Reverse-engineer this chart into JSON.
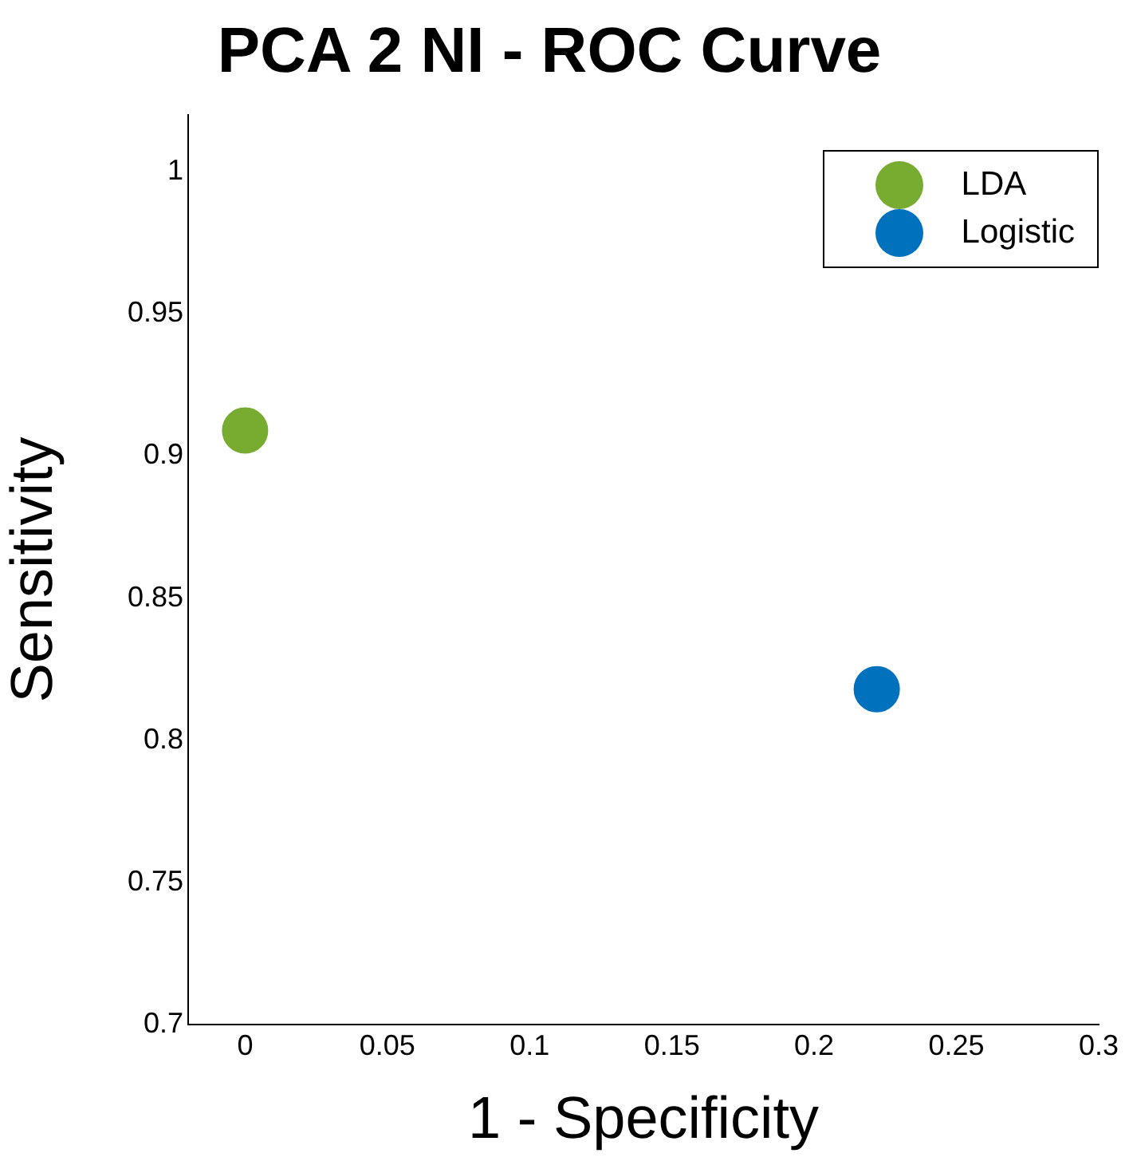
{
  "chart_data": {
    "type": "scatter",
    "title": "PCA 2 NI - ROC Curve",
    "xlabel": "1 - Specificity",
    "ylabel": "Sensitivity",
    "series": [
      {
        "name": "LDA",
        "color": "#77ac30",
        "x": [
          0
        ],
        "values": [
          0.909
        ]
      },
      {
        "name": "Logistic",
        "color": "#0072bd",
        "x": [
          0.222
        ],
        "values": [
          0.818
        ]
      }
    ],
    "xlim": [
      -0.02,
      0.3
    ],
    "xticks": [
      0,
      0.05,
      0.1,
      0.15,
      0.2,
      0.25,
      0.3
    ],
    "ylim": [
      0.7,
      1.02
    ],
    "yticks": [
      0.7,
      0.75,
      0.8,
      0.85,
      0.9,
      0.95,
      1
    ],
    "grid": false,
    "legend": "top right",
    "marker": "circle"
  }
}
